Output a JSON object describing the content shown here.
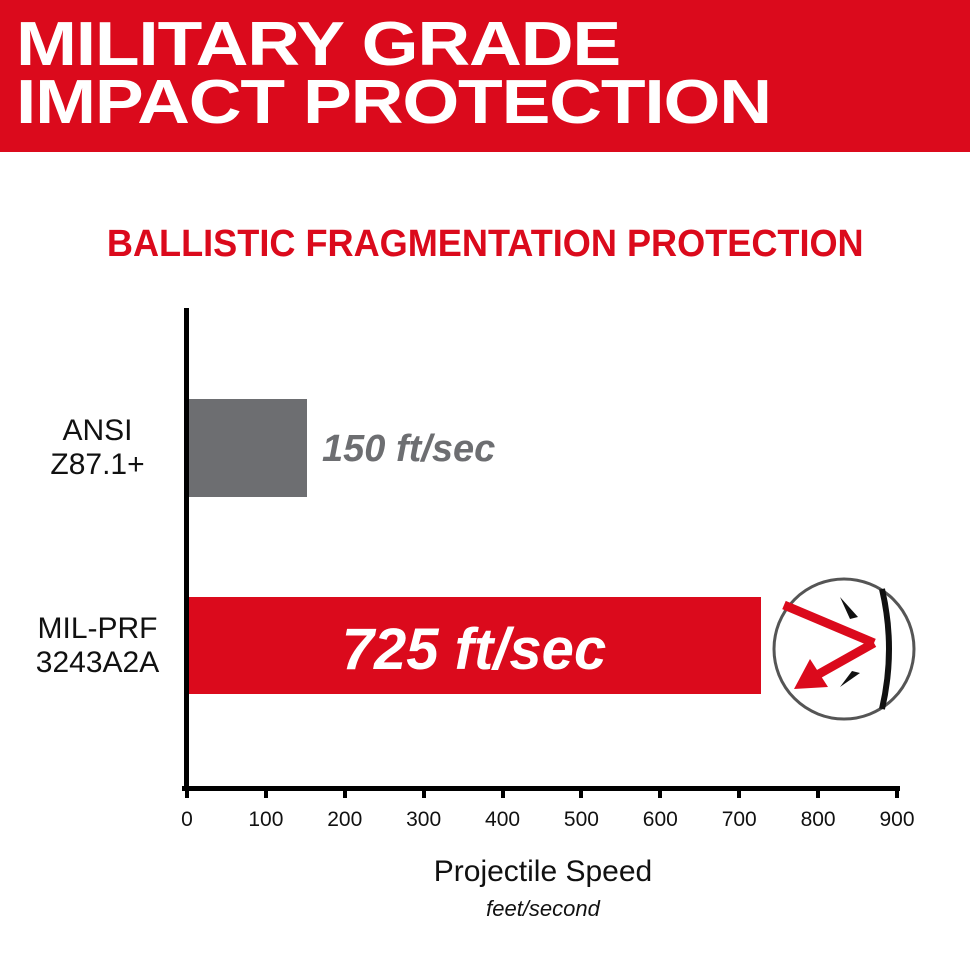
{
  "banner": {
    "line1": "MILITARY GRADE",
    "line2": "IMPACT PROTECTION",
    "color": "#db0a1c"
  },
  "chart_data": {
    "type": "bar",
    "orientation": "horizontal",
    "title": "BALLISTIC FRAGMENTATION PROTECTION",
    "categories": [
      "ANSI Z87.1+",
      "MIL-PRF 3243A2A"
    ],
    "values": [
      150,
      725
    ],
    "value_labels": [
      "150 ft/sec",
      "725 ft/sec"
    ],
    "colors": [
      "#6d6e71",
      "#db0a1c"
    ],
    "xlabel": "Projectile Speed",
    "xunit": "feet/second",
    "ylabel": "",
    "xlim": [
      0,
      900
    ],
    "xticks": [
      0,
      100,
      200,
      300,
      400,
      500,
      600,
      700,
      800,
      900
    ],
    "grid": false,
    "legend": "none"
  },
  "categories": {
    "c1_line1": "ANSI",
    "c1_line2": "Z87.1+",
    "c2_line1": "MIL-PRF",
    "c2_line2": "3243A2A"
  },
  "icon": "impact-deflection-icon"
}
